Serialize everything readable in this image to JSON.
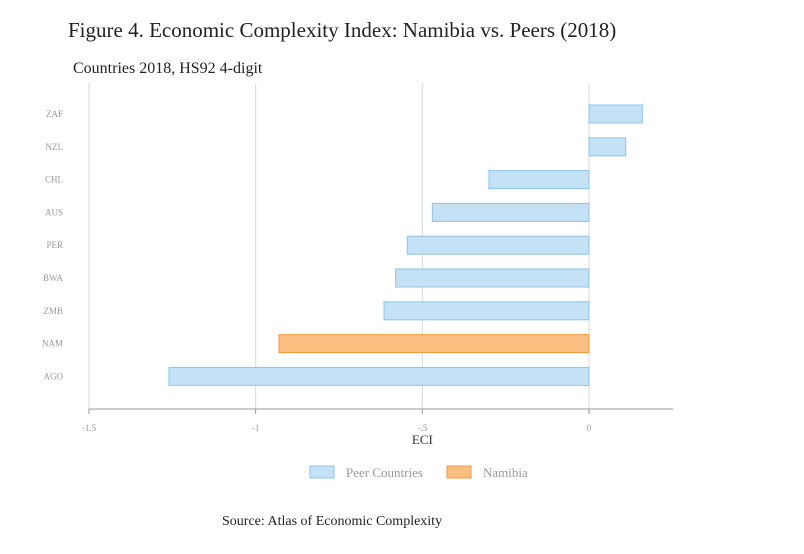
{
  "title": "Figure 4. Economic Complexity Index: Namibia vs. Peers (2018)",
  "source": "Source: Atlas of Economic Complexity",
  "colors": {
    "peer_fill": "#c5e1f5",
    "peer_stroke": "#8fc3e8",
    "namibia_fill": "#fdbe82",
    "namibia_stroke": "#f39a3e",
    "grid": "#d9d9d9",
    "axis": "#999999"
  },
  "chart_data": {
    "type": "bar",
    "orientation": "horizontal",
    "subtitle": "Countries 2018, HS92 4-digit",
    "xlabel": "ECI",
    "ylabel": "",
    "xlim": [
      -1.5,
      0.25
    ],
    "xticks": [
      -1.5,
      -1,
      -0.5,
      0
    ],
    "xtick_labels": [
      "-1.5",
      "-1",
      "-.5",
      "0"
    ],
    "grid": true,
    "legend_position": "bottom",
    "categories": [
      "ZAF",
      "NZL",
      "CHL",
      "AUS",
      "PER",
      "BWA",
      "ZMB",
      "NAM",
      "AGO"
    ],
    "values": [
      0.16,
      0.11,
      -0.3,
      -0.47,
      -0.545,
      -0.58,
      -0.615,
      -0.93,
      -1.26
    ],
    "groups": [
      "peer",
      "peer",
      "peer",
      "peer",
      "peer",
      "peer",
      "peer",
      "namibia",
      "peer"
    ],
    "legend": [
      {
        "key": "peer",
        "label": "Peer Countries"
      },
      {
        "key": "namibia",
        "label": "Namibia"
      }
    ]
  }
}
